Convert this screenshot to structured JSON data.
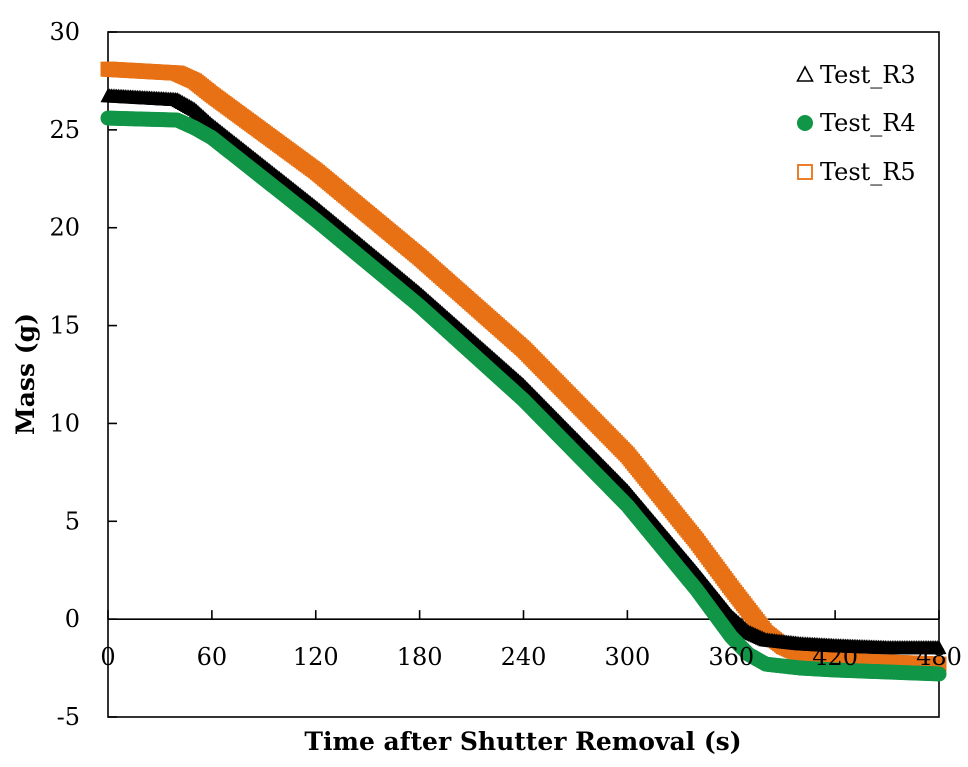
{
  "chart_data": {
    "type": "scatter",
    "title": "",
    "xlabel": "Time after Shutter Removal (s)",
    "ylabel": "Mass (g)",
    "xlim": [
      0,
      480
    ],
    "ylim": [
      -5,
      30
    ],
    "xticks": [
      0,
      60,
      120,
      180,
      240,
      300,
      360,
      420,
      480
    ],
    "yticks": [
      -5,
      0,
      5,
      10,
      15,
      20,
      25,
      30
    ],
    "xtick_labels": [
      "0",
      "60",
      "120",
      "180",
      "240",
      "300",
      "360",
      "420",
      "480"
    ],
    "ytick_labels": [
      "-5",
      "0",
      "5",
      "10",
      "15",
      "20",
      "25",
      "30"
    ],
    "grid": false,
    "legend_position": "top-right",
    "series": [
      {
        "name": "Test_R3",
        "marker": "triangle",
        "color": "#000000",
        "x": [
          0,
          40,
          50,
          60,
          120,
          180,
          240,
          300,
          340,
          360,
          370,
          380,
          400,
          420,
          450,
          480
        ],
        "y": [
          26.7,
          26.5,
          26.0,
          25.2,
          21.0,
          16.6,
          11.9,
          6.5,
          2.3,
          0.1,
          -0.7,
          -1.1,
          -1.3,
          -1.4,
          -1.5,
          -1.5
        ]
      },
      {
        "name": "Test_R4",
        "marker": "circle",
        "color": "#119547",
        "x": [
          0,
          40,
          50,
          60,
          120,
          180,
          240,
          300,
          340,
          350,
          360,
          370,
          380,
          400,
          420,
          450,
          480
        ],
        "y": [
          25.6,
          25.5,
          25.1,
          24.6,
          20.4,
          16.0,
          11.2,
          5.8,
          1.5,
          0.3,
          -0.9,
          -1.8,
          -2.3,
          -2.5,
          -2.6,
          -2.7,
          -2.8
        ]
      },
      {
        "name": "Test_R5",
        "marker": "square",
        "color": "#E87115",
        "x": [
          0,
          40,
          50,
          60,
          120,
          180,
          240,
          300,
          340,
          360,
          380,
          390,
          400,
          420,
          450,
          480
        ],
        "y": [
          28.1,
          27.9,
          27.5,
          26.8,
          22.9,
          18.5,
          13.8,
          8.4,
          4.0,
          1.6,
          -0.7,
          -1.4,
          -1.8,
          -2.1,
          -2.2,
          -2.3
        ]
      }
    ]
  }
}
